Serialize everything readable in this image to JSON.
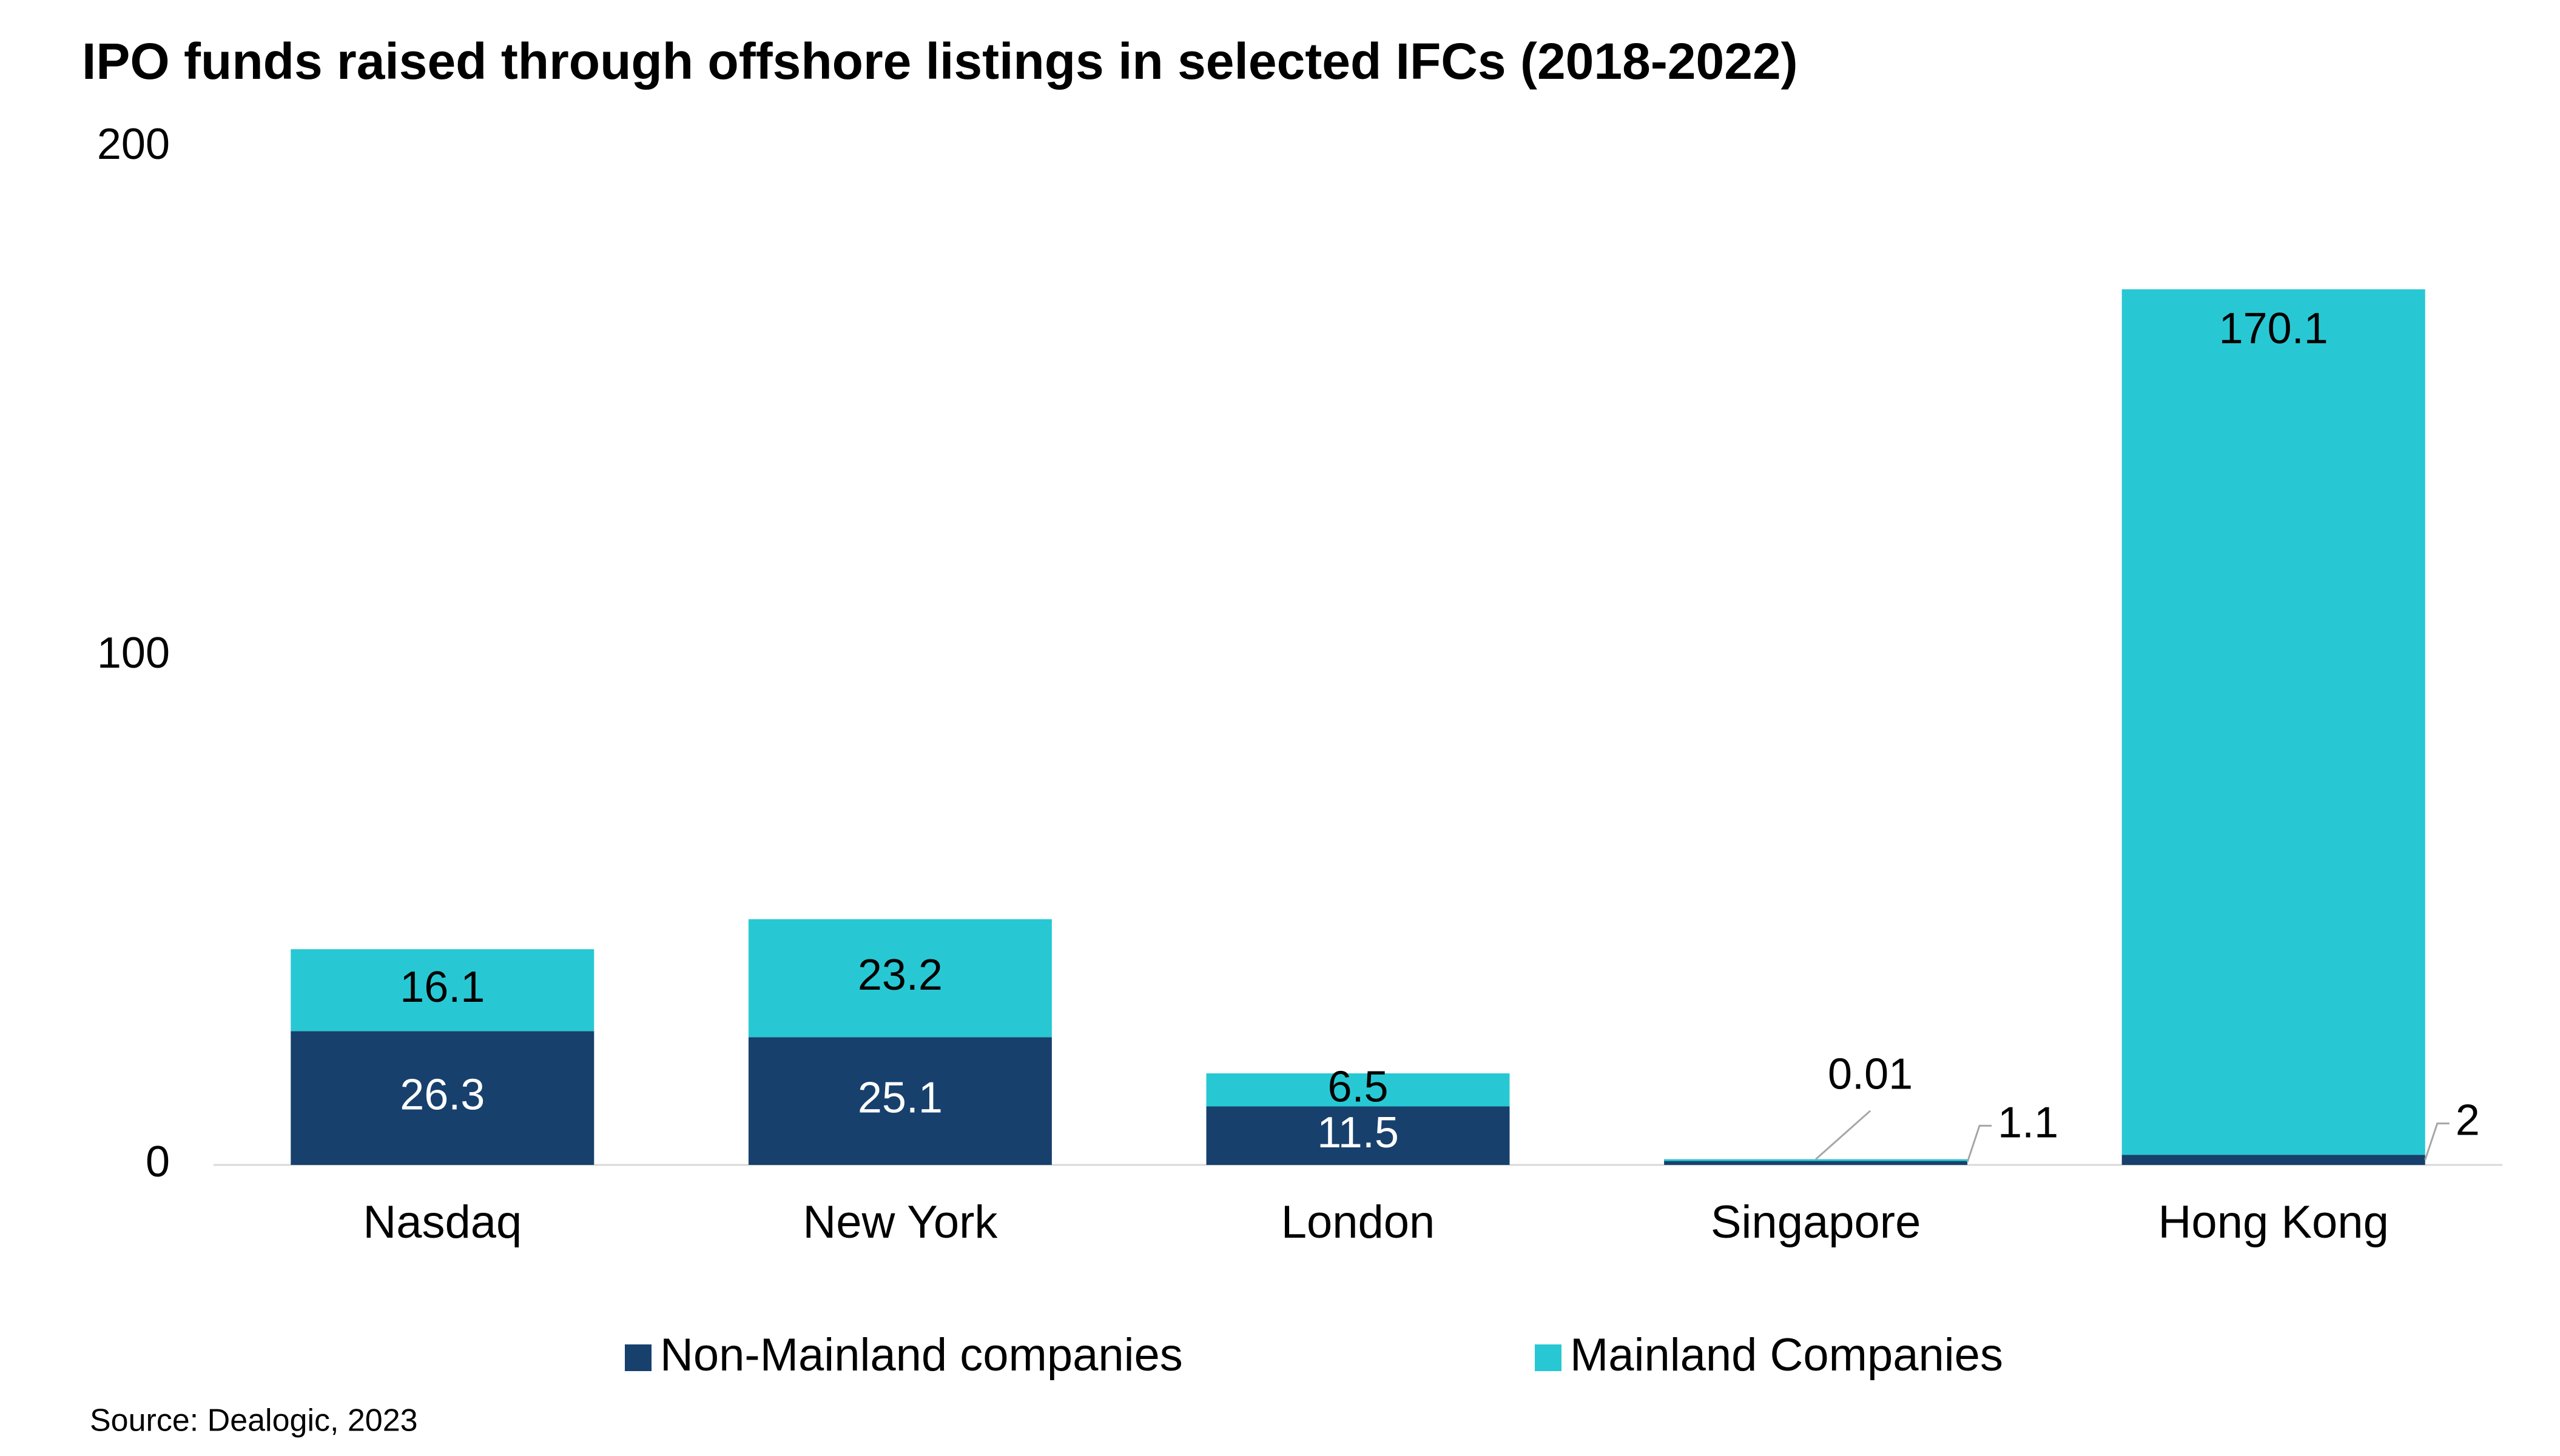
{
  "chart_data": {
    "type": "stacked-bar",
    "title": "IPO funds raised through offshore listings in selected IFCs (2018-2022)",
    "categories": [
      "Nasdaq",
      "New York",
      "London",
      "Singapore",
      "Hong Kong"
    ],
    "series": [
      {
        "name": "Non-Mainland companies",
        "color": "#17406d",
        "values": [
          26.3,
          25.1,
          11.5,
          1.1,
          2
        ]
      },
      {
        "name": "Mainland Companies",
        "color": "#27c8d3",
        "values": [
          16.1,
          23.2,
          6.5,
          0.01,
          170.1
        ]
      }
    ],
    "ylim": [
      0,
      200
    ],
    "yticks": [
      0,
      100,
      200
    ],
    "grid": false,
    "legend": "bottom",
    "source": "Source: Dealogic, 2023"
  }
}
